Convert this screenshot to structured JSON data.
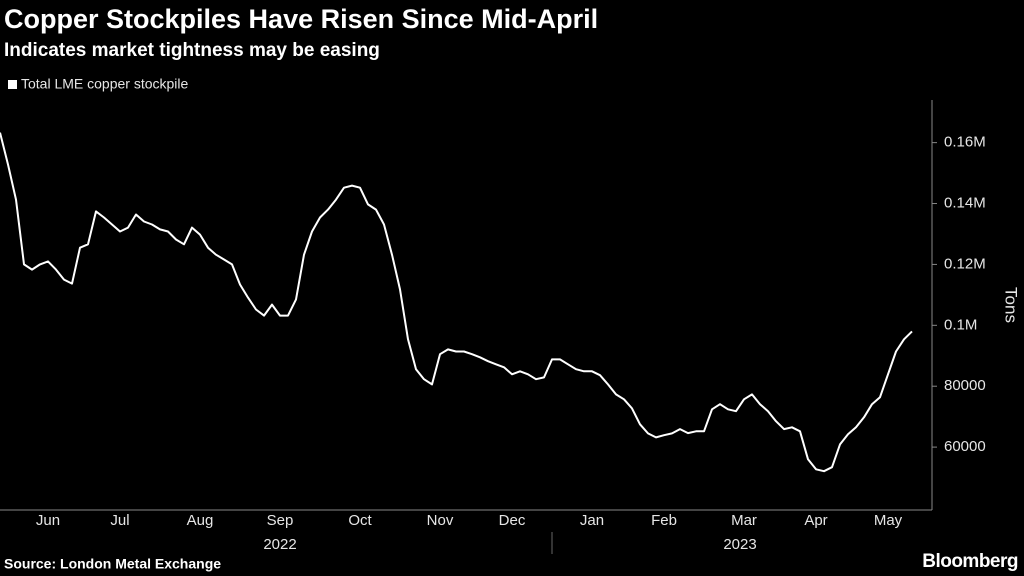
{
  "chart_data": {
    "type": "line",
    "title": "Copper Stockpiles Have Risen Since Mid-April",
    "subtitle": "Indicates market tightness may be easing",
    "y_label": "Tons",
    "source": "Source: London Metal Exchange",
    "brand": "Bloomberg",
    "year_labels": [
      "2022",
      "2023"
    ],
    "categories": [
      null,
      null,
      null,
      null,
      null,
      null,
      "Jun",
      null,
      null,
      null,
      null,
      null,
      null,
      null,
      null,
      "Jul",
      null,
      null,
      null,
      null,
      null,
      null,
      null,
      null,
      null,
      "Aug",
      null,
      null,
      null,
      null,
      null,
      null,
      null,
      null,
      null,
      "Sep",
      null,
      null,
      null,
      null,
      null,
      null,
      null,
      null,
      null,
      "Oct",
      null,
      null,
      null,
      null,
      null,
      null,
      null,
      null,
      null,
      "Nov",
      null,
      null,
      null,
      null,
      null,
      null,
      null,
      null,
      "Dec",
      null,
      null,
      null,
      null,
      null,
      null,
      null,
      null,
      null,
      "Jan",
      null,
      null,
      null,
      null,
      null,
      null,
      null,
      null,
      "Feb",
      null,
      null,
      null,
      null,
      null,
      null,
      null,
      null,
      null,
      "Mar",
      null,
      null,
      null,
      null,
      null,
      null,
      null,
      null,
      "Apr",
      null,
      null,
      null,
      null,
      null,
      null,
      null,
      null,
      "May",
      null,
      null,
      null
    ],
    "series": [
      {
        "name": "Total LME copper stockpile",
        "color": "#ffffff",
        "values": [
          163300,
          152800,
          141300,
          120000,
          118300,
          120000,
          121000,
          118300,
          115000,
          113700,
          125500,
          126600,
          137400,
          135400,
          133100,
          130800,
          132100,
          136400,
          134100,
          133100,
          131500,
          130800,
          128200,
          126600,
          132100,
          129800,
          125500,
          123200,
          121600,
          120000,
          113400,
          109100,
          105200,
          103200,
          106800,
          103200,
          103200,
          108500,
          123200,
          130800,
          135400,
          138000,
          141300,
          145200,
          145900,
          145200,
          139700,
          138000,
          133100,
          123200,
          111800,
          95400,
          85600,
          82300,
          80600,
          90500,
          92100,
          91400,
          91400,
          90500,
          89500,
          88200,
          87200,
          86200,
          83900,
          84900,
          83900,
          82300,
          82900,
          88800,
          88800,
          87200,
          85600,
          84900,
          84900,
          83600,
          80600,
          77300,
          75700,
          72700,
          67500,
          64500,
          63200,
          63900,
          64500,
          65900,
          64600,
          65200,
          65200,
          72400,
          74100,
          72400,
          71800,
          75700,
          77300,
          74100,
          71800,
          68500,
          65900,
          66500,
          65200,
          56000,
          52700,
          52100,
          53400,
          60900,
          64200,
          66500,
          69800,
          74100,
          76400,
          83900,
          91400,
          95400,
          98000
        ]
      }
    ],
    "ylim": [
      40000,
      174000
    ],
    "yticks": [
      60000,
      80000,
      {
        "value": 100000,
        "label": "0.1M"
      },
      {
        "value": 120000,
        "label": "0.12M"
      },
      {
        "value": 140000,
        "label": "0.14M"
      },
      {
        "value": 160000,
        "label": "0.16M"
      }
    ],
    "legend": "top-left"
  }
}
